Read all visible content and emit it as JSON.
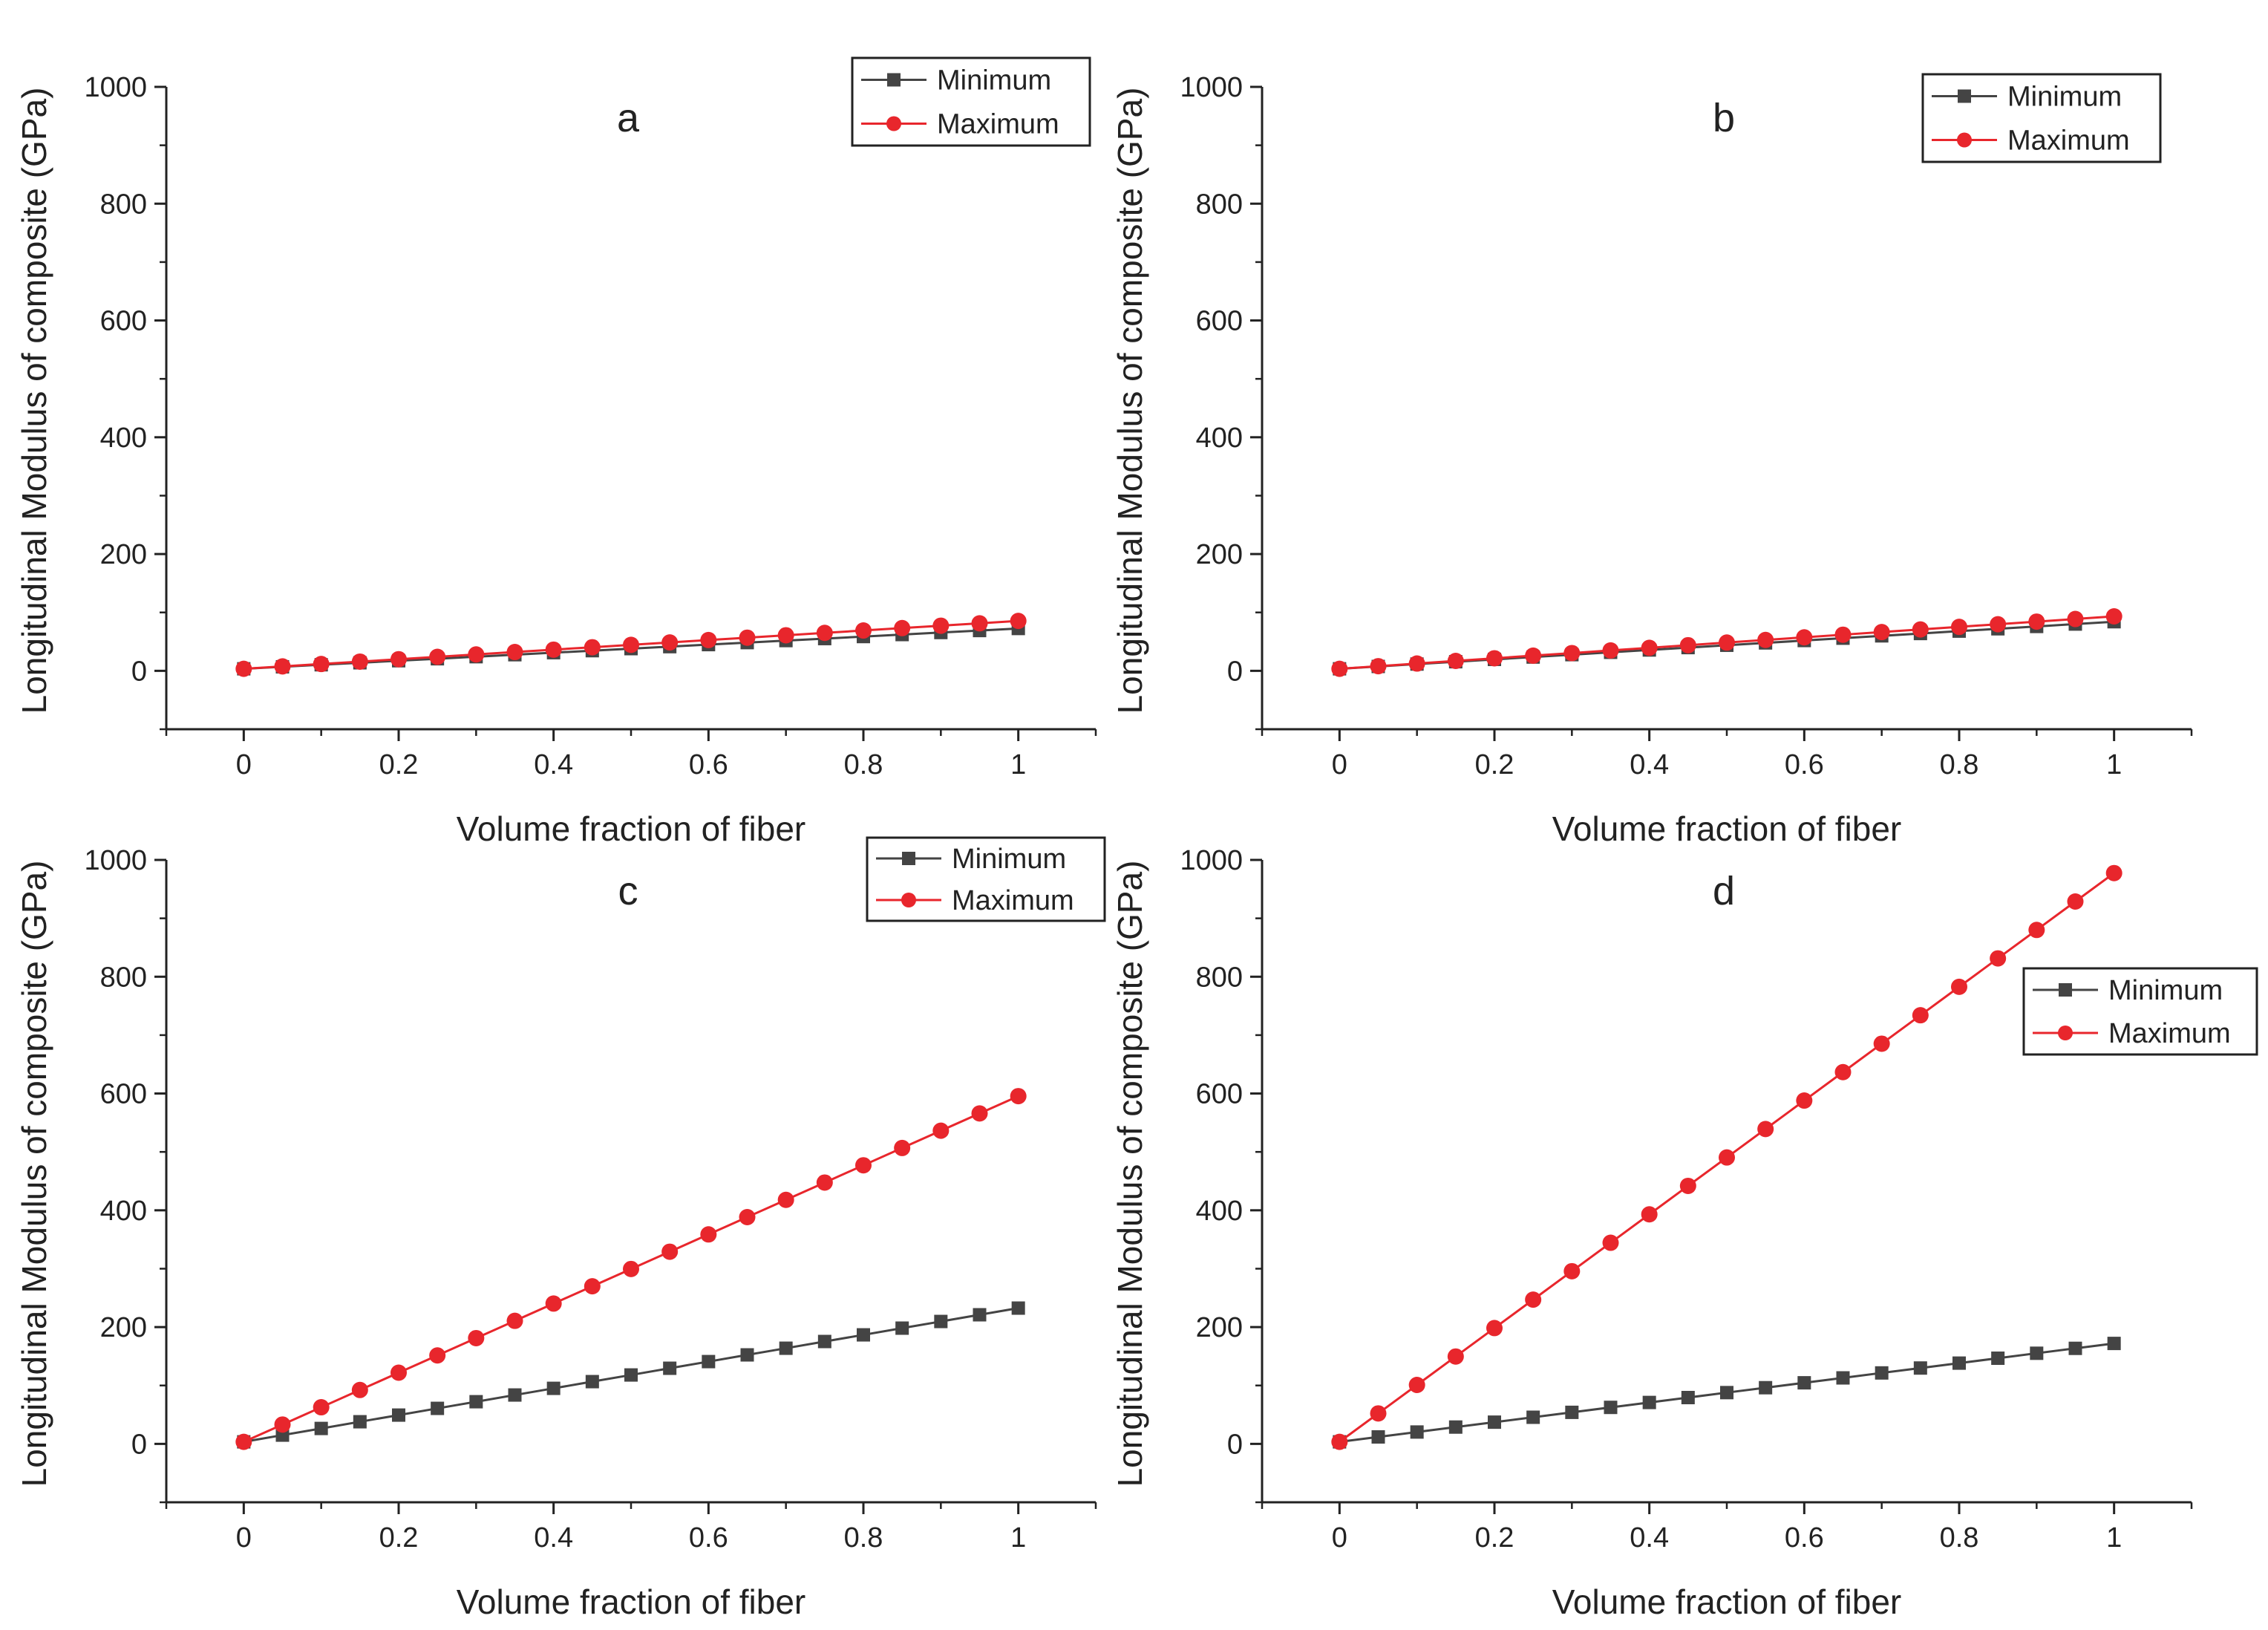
{
  "chart_data": [
    {
      "type": "line",
      "panel": "a",
      "title": "a",
      "xlabel": "Volume fraction of fiber",
      "ylabel": "Longitudinal Modulus of composite (GPa)",
      "xlim": [
        -0.1,
        1.1
      ],
      "ylim": [
        -100,
        1000
      ],
      "xticks": [
        0,
        0.2,
        0.4,
        0.6,
        0.8,
        1
      ],
      "xtick_labels": [
        "0",
        "0.2",
        "0.4",
        "0.6",
        "0.8",
        "1"
      ],
      "yticks": [
        0,
        200,
        400,
        600,
        800,
        1000
      ],
      "ytick_labels": [
        "0",
        "200",
        "400",
        "600",
        "800",
        "1000"
      ],
      "legend_position": "top-right",
      "x": [
        0,
        0.05,
        0.1,
        0.15,
        0.2,
        0.25,
        0.3,
        0.35,
        0.4,
        0.45,
        0.5,
        0.55,
        0.6,
        0.65,
        0.7,
        0.75,
        0.8,
        0.85,
        0.9,
        0.95,
        1
      ],
      "series": [
        {
          "name": "Minimum",
          "color": "#444444",
          "marker": "square",
          "values": [
            3.5,
            6.9,
            10.4,
            13.8,
            17.3,
            20.7,
            24.2,
            27.6,
            31.1,
            34.5,
            38.0,
            41.4,
            44.9,
            48.3,
            51.8,
            55.2,
            58.7,
            62.1,
            65.6,
            69.0,
            72.5
          ]
        },
        {
          "name": "Maximum",
          "color": "#e8262c",
          "marker": "circle",
          "values": [
            3.5,
            7.6,
            11.7,
            15.8,
            19.9,
            24.0,
            28.1,
            32.2,
            36.3,
            40.4,
            44.5,
            48.6,
            52.7,
            56.8,
            60.9,
            65.0,
            69.1,
            73.2,
            77.3,
            81.4,
            85.5
          ]
        }
      ]
    },
    {
      "type": "line",
      "panel": "b",
      "title": "b",
      "xlabel": "Volume fraction of fiber",
      "ylabel": "Longitudinal Modulus of composite (GPa)",
      "xlim": [
        -0.1,
        1.1
      ],
      "ylim": [
        -100,
        1000
      ],
      "xticks": [
        0,
        0.2,
        0.4,
        0.6,
        0.8,
        1
      ],
      "xtick_labels": [
        "0",
        "0.2",
        "0.4",
        "0.6",
        "0.8",
        "1"
      ],
      "yticks": [
        0,
        200,
        400,
        600,
        800,
        1000
      ],
      "ytick_labels": [
        "0",
        "200",
        "400",
        "600",
        "800",
        "1000"
      ],
      "legend_position": "top-right",
      "x": [
        0,
        0.05,
        0.1,
        0.15,
        0.2,
        0.25,
        0.3,
        0.35,
        0.4,
        0.45,
        0.5,
        0.55,
        0.6,
        0.65,
        0.7,
        0.75,
        0.8,
        0.85,
        0.9,
        0.95,
        1
      ],
      "series": [
        {
          "name": "Minimum",
          "color": "#444444",
          "marker": "square",
          "values": [
            3.5,
            7.5,
            11.6,
            15.6,
            19.6,
            23.6,
            27.7,
            31.7,
            35.7,
            39.8,
            43.8,
            47.8,
            51.9,
            55.9,
            59.9,
            63.9,
            68.0,
            72.0,
            76.0,
            80.1,
            84.1
          ]
        },
        {
          "name": "Maximum",
          "color": "#e8262c",
          "marker": "circle",
          "values": [
            3.5,
            8.0,
            12.5,
            17.0,
            21.5,
            26.0,
            30.4,
            34.9,
            39.4,
            43.9,
            48.4,
            52.9,
            57.4,
            61.9,
            66.4,
            70.9,
            75.3,
            79.8,
            84.3,
            88.8,
            93.3
          ]
        }
      ]
    },
    {
      "type": "line",
      "panel": "c",
      "title": "c",
      "xlabel": "Volume fraction of fiber",
      "ylabel": "Longitudinal Modulus of composite (GPa)",
      "xlim": [
        -0.1,
        1.1
      ],
      "ylim": [
        -100,
        1000
      ],
      "xticks": [
        0,
        0.2,
        0.4,
        0.6,
        0.8,
        1
      ],
      "xtick_labels": [
        "0",
        "0.2",
        "0.4",
        "0.6",
        "0.8",
        "1"
      ],
      "yticks": [
        0,
        200,
        400,
        600,
        800,
        1000
      ],
      "ytick_labels": [
        "0",
        "200",
        "400",
        "600",
        "800",
        "1000"
      ],
      "legend_position": "top-right",
      "x": [
        0,
        0.05,
        0.1,
        0.15,
        0.2,
        0.25,
        0.3,
        0.35,
        0.4,
        0.45,
        0.5,
        0.55,
        0.6,
        0.65,
        0.7,
        0.75,
        0.8,
        0.85,
        0.9,
        0.95,
        1
      ],
      "series": [
        {
          "name": "Minimum",
          "color": "#444444",
          "marker": "square",
          "values": [
            3.5,
            15.0,
            26.4,
            37.9,
            49.3,
            60.8,
            72.2,
            83.7,
            95.1,
            106.6,
            118.0,
            129.5,
            140.9,
            152.4,
            163.8,
            175.3,
            186.7,
            198.2,
            209.6,
            221.1,
            232.5
          ]
        },
        {
          "name": "Maximum",
          "color": "#e8262c",
          "marker": "circle",
          "values": [
            3.5,
            33.1,
            62.7,
            92.3,
            121.9,
            151.5,
            181.1,
            210.7,
            240.3,
            269.9,
            299.5,
            329.1,
            358.7,
            388.3,
            417.9,
            447.5,
            477.1,
            506.7,
            536.3,
            565.9,
            595.5
          ]
        }
      ]
    },
    {
      "type": "line",
      "panel": "d",
      "title": "d",
      "xlabel": "Volume fraction of fiber",
      "ylabel": "Longitudinal Modulus of composite (GPa)",
      "xlim": [
        -0.1,
        1.1
      ],
      "ylim": [
        -100,
        1000
      ],
      "xticks": [
        0,
        0.2,
        0.4,
        0.6,
        0.8,
        1
      ],
      "xtick_labels": [
        "0",
        "0.2",
        "0.4",
        "0.6",
        "0.8",
        "1"
      ],
      "yticks": [
        0,
        200,
        400,
        600,
        800,
        1000
      ],
      "ytick_labels": [
        "0",
        "200",
        "400",
        "600",
        "800",
        "1000"
      ],
      "legend_position": "top-right",
      "x": [
        0,
        0.05,
        0.1,
        0.15,
        0.2,
        0.25,
        0.3,
        0.35,
        0.4,
        0.45,
        0.5,
        0.55,
        0.6,
        0.65,
        0.7,
        0.75,
        0.8,
        0.85,
        0.9,
        0.95,
        1
      ],
      "series": [
        {
          "name": "Minimum",
          "color": "#444444",
          "marker": "square",
          "values": [
            3.5,
            11.9,
            20.3,
            28.8,
            37.2,
            45.6,
            54.0,
            62.5,
            70.9,
            79.3,
            87.8,
            96.2,
            104.6,
            113.0,
            121.5,
            129.9,
            138.3,
            146.7,
            155.2,
            163.6,
            172.0
          ]
        },
        {
          "name": "Maximum",
          "color": "#e8262c",
          "marker": "circle",
          "values": [
            3.5,
            52.2,
            100.9,
            149.6,
            198.3,
            247.0,
            295.7,
            344.4,
            393.1,
            441.8,
            490.5,
            539.2,
            587.9,
            636.6,
            685.3,
            734.0,
            782.7,
            831.4,
            880.1,
            928.8,
            977.5
          ]
        }
      ]
    }
  ]
}
